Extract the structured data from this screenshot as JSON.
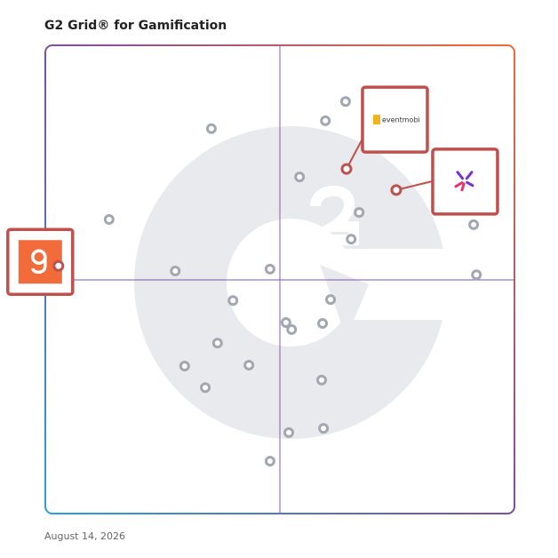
{
  "chart_data": {
    "type": "scatter",
    "title": "G2 Grid® for Gamification",
    "date": "August 14, 2026",
    "x": [
      64.0,
      59.7,
      35.4,
      54.2,
      66.9,
      65.2,
      13.6,
      27.7,
      47.9,
      40.0,
      60.8,
      51.3,
      52.5,
      59.1,
      36.7,
      29.7,
      43.4,
      34.1,
      58.9,
      51.9,
      59.3,
      47.9,
      91.3,
      91.9
    ],
    "values": [
      88.0,
      83.9,
      82.2,
      71.9,
      64.3,
      58.6,
      62.8,
      51.8,
      52.2,
      45.5,
      45.7,
      40.8,
      39.3,
      40.6,
      36.4,
      31.5,
      31.7,
      26.9,
      28.5,
      17.3,
      18.2,
      11.2,
      61.7,
      51.0
    ],
    "color": "#a3a7b1",
    "featured": {
      "x": [
        64.2,
        74.8,
        2.8
      ],
      "values": [
        73.6,
        69.1,
        52.9
      ],
      "color": "#c0504d",
      "logo_text": "eventmobi"
    },
    "xlim": [
      0,
      100
    ],
    "ylim": [
      0,
      100
    ]
  }
}
